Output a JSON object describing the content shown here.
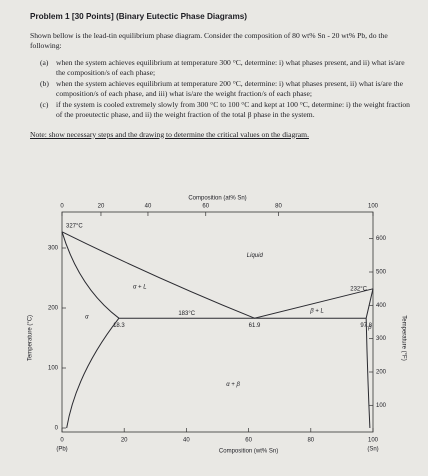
{
  "header": {
    "title": "Problem 1 [30 Points] (Binary Eutectic Phase Diagrams)"
  },
  "intro": "Shown bellow is the lead-tin equilibrium phase diagram. Consider the composition of 80 wt% Sn - 20 wt% Pb, do the following:",
  "questions": [
    {
      "label": "(a)",
      "text": "when the system achieves equilibrium at temperature 300 °C, determine: i) what phases present, and ii) what is/are the composition/s of each phase;"
    },
    {
      "label": "(b)",
      "text": "when the system achieves equilibrium at temperature 200 °C, determine: i) what phases present, ii) what is/are the composition/s of each phase, and iii) what is/are the weight fraction/s of each phase;"
    },
    {
      "label": "(c)",
      "text": "if the system is cooled extremely slowly from 300 °C to 100 °C and kept at 100 °C, determine: i) the weight fraction of the proeutectic phase, and ii) the weight fraction of the total β phase in the system."
    }
  ],
  "note": "Note: show necessary steps and the drawing to determine the critical values on the diagram.",
  "diagram": {
    "top_axis_title": "Composition (at% Sn)",
    "top_ticks": [
      0,
      20,
      40,
      60,
      80,
      100
    ],
    "bottom_axis_title": "Composition (wt% Sn)",
    "bottom_ticks": [
      0,
      20,
      40,
      60,
      80,
      100
    ],
    "left_end": "(Pb)",
    "right_end": "(Sn)",
    "left_axis_title": "Temperature (°C)",
    "left_ticks": [
      0,
      100,
      200,
      300
    ],
    "right_axis_title": "Temperature (°F)",
    "right_ticks": [
      100,
      200,
      300,
      400,
      500,
      600
    ],
    "melting_pb": {
      "value": 327,
      "label": "327°C"
    },
    "melting_sn": {
      "value": 232,
      "label": "232°C"
    },
    "eutectic_temperature": {
      "value": 183,
      "label": "183°C"
    },
    "compositions": [
      18.3,
      61.9,
      97.8
    ],
    "region_labels": [
      "Liquid",
      "α + L",
      "β + L",
      "α",
      "β",
      "α + β"
    ]
  }
}
